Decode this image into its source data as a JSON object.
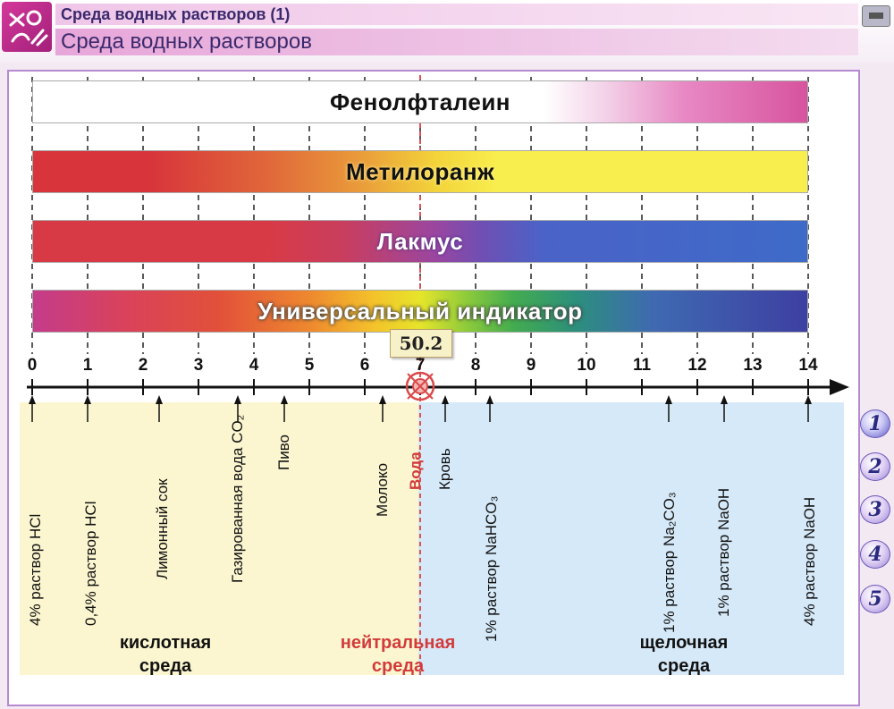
{
  "window": {
    "title_small": "Среда водных растворов (1)",
    "title_large": "Среда водных растворов"
  },
  "indicators": [
    {
      "label": "Фенолфталеин"
    },
    {
      "label": "Метилоранж"
    },
    {
      "label": "Лакмус"
    },
    {
      "label": "Универсальный индикатор"
    }
  ],
  "scale": {
    "ticks": [
      "0",
      "1",
      "2",
      "3",
      "4",
      "5",
      "6",
      "7",
      "8",
      "9",
      "10",
      "11",
      "12",
      "13",
      "14"
    ],
    "value": "50.2",
    "water_label": "Вода"
  },
  "substances": [
    {
      "label": "4% раствор HCl",
      "ph": 0
    },
    {
      "label": "0,4% раствор HCl",
      "ph": 1
    },
    {
      "label": "Лимонный сок",
      "ph": 2.3
    },
    {
      "label": "Газированная вода CO₂",
      "ph": 3.7
    },
    {
      "label": "Пиво",
      "ph": 4.5
    },
    {
      "label": "Молоко",
      "ph": 6.4
    },
    {
      "label": "Кровь",
      "ph": 7.4
    },
    {
      "label": "1% раствор NaHCO₃",
      "ph": 8.2
    },
    {
      "label": "1% раствор Na₂CO₃",
      "ph": 11.5
    },
    {
      "label": "1% раствор NaOH",
      "ph": 12.5
    },
    {
      "label": "4% раствор NaOH",
      "ph": 14
    }
  ],
  "zones": {
    "acid": [
      "кислотная",
      "среда"
    ],
    "neutral": [
      "нейтральная",
      "среда"
    ],
    "base": [
      "щелочная",
      "среда"
    ]
  },
  "nav": [
    "1",
    "2",
    "3",
    "4",
    "5"
  ],
  "colors": {
    "acid_zone": "#fbf6cf",
    "base_zone": "#d6e9f8",
    "neutral_line": "#e05050",
    "frame": "#b58ad0"
  }
}
